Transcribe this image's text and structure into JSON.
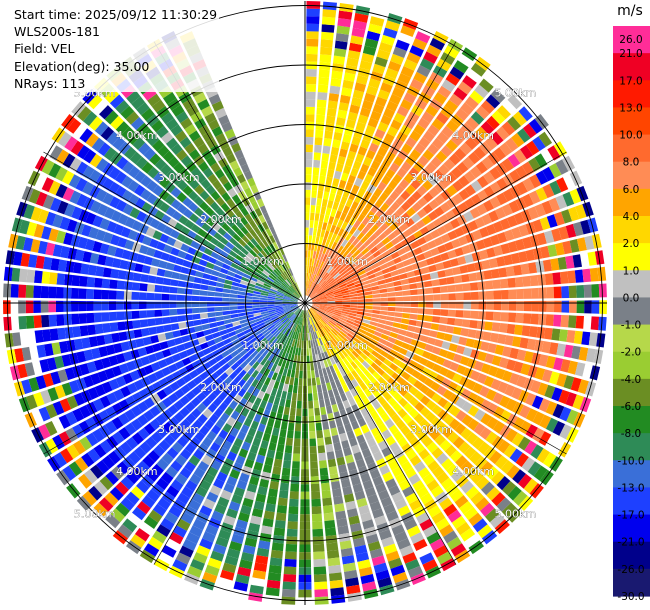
{
  "header": {
    "start_time": "Start time: 2025/09/12 11:30:29",
    "instrument": "WLS200s-181",
    "field": "Field: VEL",
    "elevation": "Elevation(deg): 35.00",
    "nrays": "NRays: 113"
  },
  "chart_data": {
    "type": "heatmap",
    "subtype": "polar PPI scan",
    "field": "VEL",
    "units": "m/s",
    "instrument": "WLS200s-181",
    "start_time": "2025/09/12 11:30:29",
    "elevation_deg": 35.0,
    "n_rays": 113,
    "range_max_km": 5.0,
    "range_rings_km": [
      1.0,
      2.0,
      3.0,
      4.0,
      5.0
    ],
    "range_ring_labels": [
      "1.00km",
      "2.00km",
      "3.00km",
      "4.00km",
      "5.00km"
    ],
    "no_data_sector_deg": [
      336,
      360
    ],
    "colorbar": {
      "title": "m/s",
      "ticks": [
        "26.0",
        "21.0",
        "17.0",
        "13.0",
        "10.0",
        "8.0",
        "6.0",
        "4.0",
        "2.0",
        "1.0",
        "0.0",
        "-1.0",
        "-2.0",
        "-4.0",
        "-6.0",
        "-8.0",
        "-10.0",
        "-13.0",
        "-17.0",
        "-21.0",
        "-26.0",
        "-30.0"
      ],
      "colors": [
        "#ff2d98",
        "#ef0024",
        "#ff1a00",
        "#ff4500",
        "#ff6a2e",
        "#ff8c55",
        "#ffa500",
        "#ffd700",
        "#ffff00",
        "#c0c0c0",
        "#7a8088",
        "#b6d84a",
        "#9acd32",
        "#6b8e23",
        "#228b22",
        "#2e8b57",
        "#3a6fd8",
        "#1e40ff",
        "#0000ee",
        "#00008b",
        "#191970"
      ]
    },
    "velocity_pattern": {
      "north_east_quadrant": "4.0 to 13.0 m/s (receding, yellow-red)",
      "south_west_quadrant": "-2.0 to -17.0 m/s (approaching, green-blue)",
      "outer_ranges": "noisy, all colors"
    }
  }
}
